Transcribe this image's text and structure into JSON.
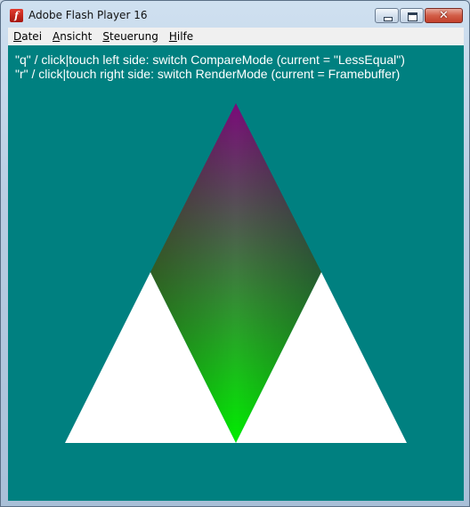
{
  "window": {
    "title": "Adobe Flash Player 16",
    "icon": "flash-icon",
    "controls": [
      "minimize-icon",
      "maximize-icon",
      "close-icon"
    ]
  },
  "menu": {
    "items": [
      {
        "underline": "D",
        "rest": "atei"
      },
      {
        "underline": "A",
        "rest": "nsicht"
      },
      {
        "underline": "S",
        "rest": "teuerung"
      },
      {
        "underline": "H",
        "rest": "ilfe"
      }
    ]
  },
  "stage": {
    "background": "#008080",
    "lines": [
      "\"q\" / click|touch left side: switch CompareMode (current = \"LessEqual\")",
      "\"r\" / click|touch right side: switch RenderMode (current = Framebuffer)"
    ],
    "colors": {
      "triangle_fill": "#ffffff",
      "gradient_top": "#7a0a7a",
      "gradient_left": "#8a7a10",
      "gradient_right": "#2a6a90",
      "gradient_bottom": "#00ee00"
    }
  }
}
